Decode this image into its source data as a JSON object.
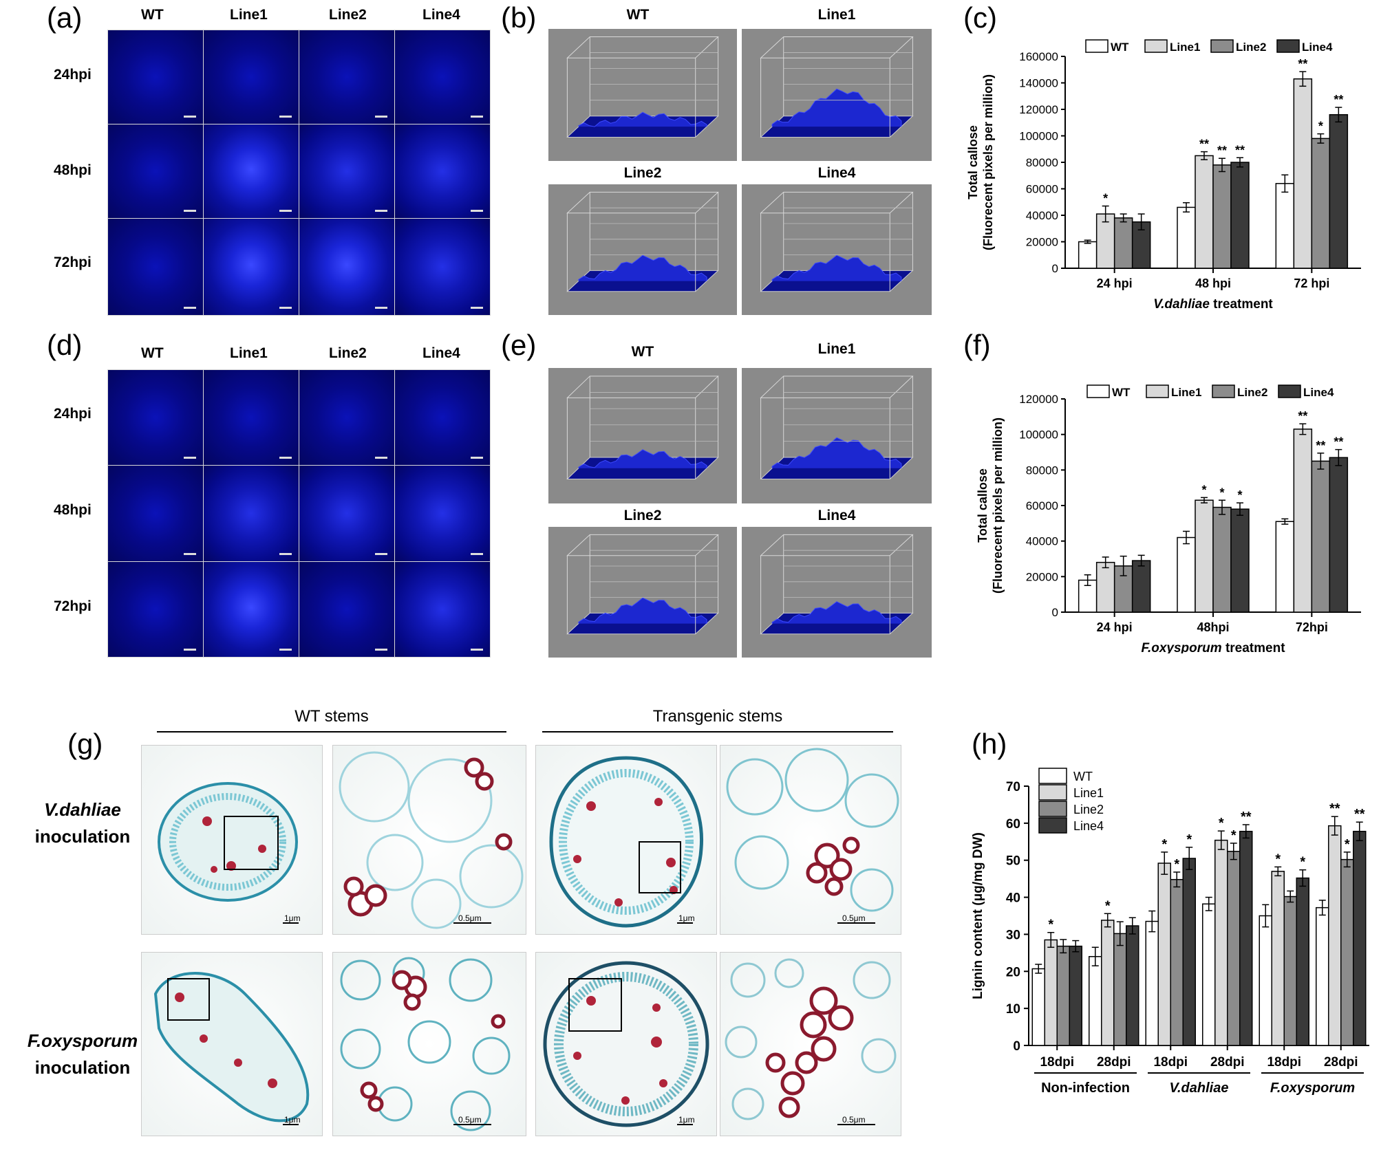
{
  "panels": {
    "a": {
      "label": "(a)"
    },
    "b": {
      "label": "(b)"
    },
    "c": {
      "label": "(c)"
    },
    "d": {
      "label": "(d)"
    },
    "e": {
      "label": "(e)"
    },
    "f": {
      "label": "(f)"
    },
    "g": {
      "label": "(g)"
    },
    "h": {
      "label": "(h)"
    }
  },
  "micrograph_columns": [
    "WT",
    "Line1",
    "Line2",
    "Line4"
  ],
  "micrograph_rows": [
    "24hpi",
    "48hpi",
    "72hpi"
  ],
  "surface_titles": [
    "WT",
    "Line1",
    "Line2",
    "Line4"
  ],
  "stem_panel": {
    "wt_title": "WT stems",
    "transgenic_title": "Transgenic stems",
    "row1_line1": "V.dahliae",
    "row1_line2": "inoculation",
    "row2_line1": "F.oxysporum",
    "row2_line2": "inoculation",
    "scale_1": "1μm",
    "scale_2": "0.5μm"
  },
  "chart_data": [
    {
      "id": "c",
      "type": "bar",
      "legend": [
        "WT",
        "Line1",
        "Line2",
        "Line4"
      ],
      "legend_position": "top",
      "categories": [
        "24 hpi",
        "48 hpi",
        "72 hpi"
      ],
      "series": [
        {
          "name": "WT",
          "values": [
            20000,
            46000,
            64000
          ],
          "errors": [
            1200,
            3500,
            6500
          ],
          "sig": [
            "",
            "",
            ""
          ],
          "color": "#ffffff"
        },
        {
          "name": "Line1",
          "values": [
            41000,
            85000,
            143000
          ],
          "errors": [
            6000,
            3000,
            5500
          ],
          "sig": [
            "*",
            "**",
            "**"
          ],
          "color": "#d9d9d9"
        },
        {
          "name": "Line2",
          "values": [
            38000,
            78000,
            98000
          ],
          "errors": [
            3000,
            5000,
            3500
          ],
          "sig": [
            "",
            "**",
            "*"
          ],
          "color": "#8c8c8c"
        },
        {
          "name": "Line4",
          "values": [
            35000,
            80000,
            116000
          ],
          "errors": [
            6000,
            3500,
            5500
          ],
          "sig": [
            "",
            "**",
            "**"
          ],
          "color": "#3a3a3a"
        }
      ],
      "ylim": [
        0,
        160000
      ],
      "yticks": [
        0,
        20000,
        40000,
        60000,
        80000,
        100000,
        120000,
        140000,
        160000
      ],
      "ylabel_line1": "Total callose",
      "ylabel_line2": "(Fluorecent pixels per million)",
      "xlabel_italic": "V.dahliae",
      "xlabel_rest": " treatment"
    },
    {
      "id": "f",
      "type": "bar",
      "legend": [
        "WT",
        "Line1",
        "Line2",
        "Line4"
      ],
      "legend_position": "top",
      "categories": [
        "24 hpi",
        "48hpi",
        "72hpi"
      ],
      "series": [
        {
          "name": "WT",
          "values": [
            18000,
            42000,
            51000
          ],
          "errors": [
            3000,
            3500,
            1500
          ],
          "sig": [
            "",
            "",
            ""
          ],
          "color": "#ffffff"
        },
        {
          "name": "Line1",
          "values": [
            28000,
            63000,
            103000
          ],
          "errors": [
            3000,
            1500,
            3000
          ],
          "sig": [
            "",
            "*",
            "**"
          ],
          "color": "#d9d9d9"
        },
        {
          "name": "Line2",
          "values": [
            26000,
            59000,
            85000
          ],
          "errors": [
            5500,
            4000,
            4500
          ],
          "sig": [
            "",
            "*",
            "**"
          ],
          "color": "#8c8c8c"
        },
        {
          "name": "Line4",
          "values": [
            29000,
            58000,
            87000
          ],
          "errors": [
            3000,
            3500,
            4500
          ],
          "sig": [
            "",
            "*",
            "**"
          ],
          "color": "#3a3a3a"
        }
      ],
      "ylim": [
        0,
        120000
      ],
      "yticks": [
        0,
        20000,
        40000,
        60000,
        80000,
        100000,
        120000
      ],
      "ylabel_line1": "Total callose",
      "ylabel_line2": "(Fluorecent pixels per million)",
      "xlabel_italic": "F.oxysporum",
      "xlabel_rest": " treatment"
    },
    {
      "id": "h",
      "type": "bar",
      "legend": [
        "WT",
        "Line1",
        "Line2",
        "Line4"
      ],
      "legend_position": "top-left",
      "categories": [
        "18dpi",
        "28dpi",
        "18dpi",
        "28dpi",
        "18dpi",
        "28dpi"
      ],
      "groups": [
        {
          "label": "Non-infection",
          "italic": false
        },
        {
          "label": "V.dahliae",
          "italic": true
        },
        {
          "label": "F.oxysporum",
          "italic": true
        }
      ],
      "series": [
        {
          "name": "WT",
          "values": [
            20.7,
            24.0,
            33.5,
            38.2,
            35.0,
            37.2
          ],
          "errors": [
            1.2,
            2.5,
            2.8,
            1.8,
            3.0,
            2.0
          ],
          "sig": [
            "",
            "",
            "",
            "",
            "",
            ""
          ],
          "color": "#ffffff"
        },
        {
          "name": "Line1",
          "values": [
            28.5,
            33.8,
            49.2,
            55.4,
            47.0,
            59.3
          ],
          "errors": [
            2.0,
            1.8,
            3.0,
            2.5,
            1.2,
            2.5
          ],
          "sig": [
            "*",
            "*",
            "*",
            "*",
            "*",
            "**"
          ],
          "color": "#d9d9d9"
        },
        {
          "name": "Line2",
          "values": [
            26.8,
            30.2,
            44.8,
            52.4,
            40.2,
            50.2
          ],
          "errors": [
            1.8,
            3.2,
            2.0,
            2.2,
            1.5,
            2.0
          ],
          "sig": [
            "",
            "",
            "*",
            "*",
            "",
            "*"
          ],
          "color": "#8c8c8c"
        },
        {
          "name": "Line4",
          "values": [
            26.8,
            32.3,
            50.5,
            57.8,
            45.2,
            57.8
          ],
          "errors": [
            1.5,
            2.2,
            3.0,
            1.8,
            2.2,
            2.5
          ],
          "sig": [
            "",
            "",
            "*",
            "**",
            "*",
            "**"
          ],
          "color": "#3a3a3a"
        }
      ],
      "ylim": [
        0,
        70
      ],
      "yticks": [
        0,
        10,
        20,
        30,
        40,
        50,
        60,
        70
      ],
      "ylabel": "Lignin content (μg/mg DW)"
    }
  ]
}
